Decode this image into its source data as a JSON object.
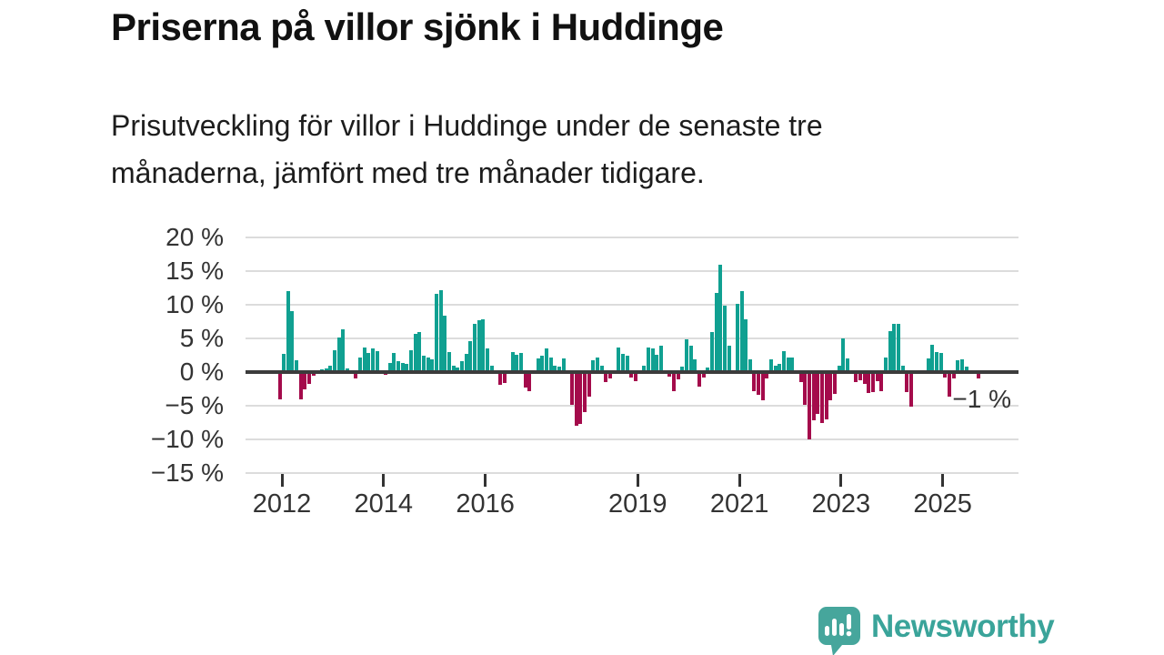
{
  "header": {
    "title": "Priserna på villor sjönk i Huddinge",
    "subtitle_line1": "Prisutveckling för villor i Huddinge under de senaste tre",
    "subtitle_line2": "månaderna, jämfört med tre månader tidigare."
  },
  "chart_data": {
    "type": "bar",
    "title": "Priserna på villor sjönk i Huddinge",
    "unit": "%",
    "x_start": "2012-01",
    "x_freq": "monthly",
    "values": [
      -4.0,
      2.7,
      12.0,
      9.0,
      1.8,
      -4.0,
      -2.6,
      -1.8,
      -0.6,
      0,
      0.4,
      0.6,
      1.0,
      3.3,
      5.1,
      6.4,
      0.5,
      0,
      -1.0,
      2.1,
      3.6,
      2.9,
      3.5,
      3.1,
      0,
      -0.4,
      1.3,
      2.9,
      1.6,
      1.3,
      1.2,
      3.3,
      5.7,
      5.9,
      2.4,
      2.2,
      1.9,
      11.6,
      12.2,
      8.4,
      3.0,
      0.9,
      0.7,
      1.6,
      2.7,
      4.6,
      7.1,
      7.7,
      7.8,
      3.5,
      0.9,
      0,
      -1.9,
      -1.6,
      0,
      3.0,
      2.6,
      2.8,
      -2.3,
      -2.8,
      0,
      2.0,
      2.5,
      3.5,
      2.2,
      1.0,
      0.8,
      2.0,
      0,
      -4.9,
      -8.0,
      -7.7,
      -6.0,
      -3.7,
      1.8,
      2.1,
      0.9,
      -1.5,
      -1.0,
      0,
      3.7,
      2.7,
      2.5,
      -0.8,
      -1.4,
      0,
      0.9,
      3.7,
      3.5,
      2.6,
      3.9,
      0,
      -0.7,
      -2.8,
      -1.1,
      0.8,
      4.9,
      3.9,
      1.9,
      -2.1,
      -0.8,
      0.7,
      5.9,
      11.8,
      16.0,
      9.9,
      3.9,
      0,
      10.1,
      12.0,
      7.9,
      1.9,
      -2.8,
      -3.4,
      -4.2,
      -0.9,
      1.9,
      1.0,
      1.2,
      3.1,
      2.2,
      2.2,
      0,
      -1.5,
      -4.9,
      -10.0,
      -7.2,
      -6.2,
      -7.5,
      -7.0,
      -4.2,
      -3.3,
      1.0,
      5.0,
      2.0,
      0,
      -1.5,
      -1.2,
      -1.8,
      -3.1,
      -3.0,
      -1.3,
      -2.9,
      2.1,
      6.1,
      7.1,
      7.1,
      1.0,
      -3.0,
      -5.2,
      0,
      0,
      0,
      2.0,
      4.0,
      3.0,
      2.9,
      -0.8,
      -3.7,
      -0.9,
      1.8,
      1.9,
      0.8,
      0,
      0,
      -1.0
    ],
    "y_ticks": [
      20,
      15,
      10,
      5,
      0,
      -5,
      -10,
      -15
    ],
    "y_tick_labels": [
      "20 %",
      "15 %",
      "10 %",
      "5 %",
      "0 %",
      "−5 %",
      "−10 %",
      "−15 %"
    ],
    "x_ticks": [
      2012,
      2014,
      2016,
      2019,
      2021,
      2023,
      2025
    ],
    "x_tick_labels": [
      "2012",
      "2014",
      "2016",
      "2019",
      "2021",
      "2023",
      "2025"
    ],
    "ylim": [
      -15,
      20
    ],
    "grid": true,
    "legend": false,
    "annotation": {
      "text": "−1 %",
      "refers_to": "last bar value"
    },
    "colors": {
      "positive": "#10a091",
      "negative": "#a40b4b"
    }
  },
  "footer": {
    "brand": "Newsworthy",
    "brand_color": "#3aa49a",
    "logo_bubble_color": "#46a69c"
  }
}
